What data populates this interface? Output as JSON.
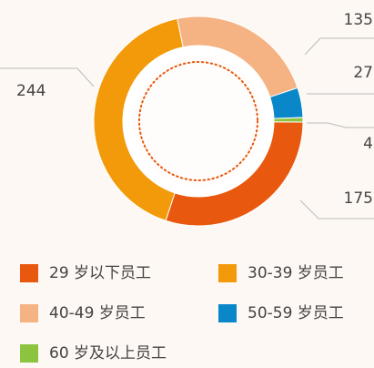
{
  "chart_data": {
    "type": "donut",
    "categories": [
      "29 岁以下员工",
      "30-39 岁员工",
      "40-49 岁员工",
      "50-59 岁员工",
      "60 岁及以上员工"
    ],
    "values": [
      175,
      244,
      135,
      27,
      4
    ],
    "colors": [
      "#e8580e",
      "#f29a0a",
      "#f5b283",
      "#0a87c9",
      "#8cc43f"
    ],
    "legend": "bottom"
  }
}
